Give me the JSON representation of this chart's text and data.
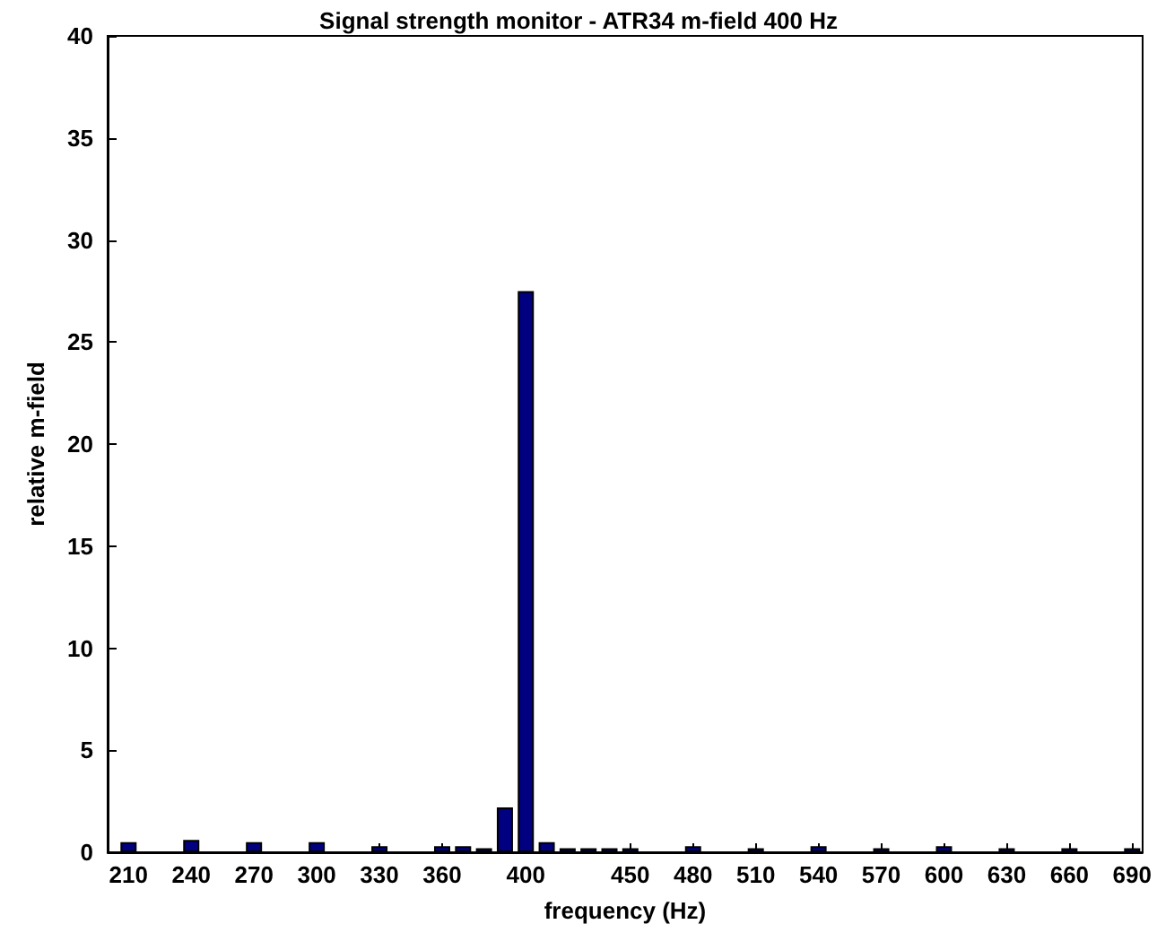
{
  "chart_data": {
    "type": "bar",
    "title": "Signal strength monitor - ATR34 m-field 400 Hz",
    "xlabel": "frequency (Hz)",
    "ylabel": "relative m-field",
    "x": [
      210,
      240,
      270,
      300,
      330,
      360,
      370,
      380,
      390,
      400,
      410,
      420,
      430,
      440,
      450,
      480,
      510,
      540,
      570,
      600,
      630,
      660,
      690
    ],
    "values": [
      0.5,
      0.6,
      0.5,
      0.5,
      0.3,
      0.3,
      0.3,
      0.2,
      2.2,
      27.5,
      0.5,
      0.2,
      0.2,
      0.2,
      0.2,
      0.3,
      0.2,
      0.3,
      0.2,
      0.3,
      0.2,
      0.2,
      0.2
    ],
    "color": "#000080",
    "xlim": [
      200,
      695
    ],
    "xticks": [
      210,
      240,
      270,
      300,
      330,
      360,
      400,
      450,
      480,
      510,
      540,
      570,
      600,
      630,
      660,
      690
    ],
    "ylim": [
      0,
      40
    ],
    "yticks": [
      0,
      5,
      10,
      15,
      20,
      25,
      30,
      35,
      40
    ],
    "grid": false
  }
}
